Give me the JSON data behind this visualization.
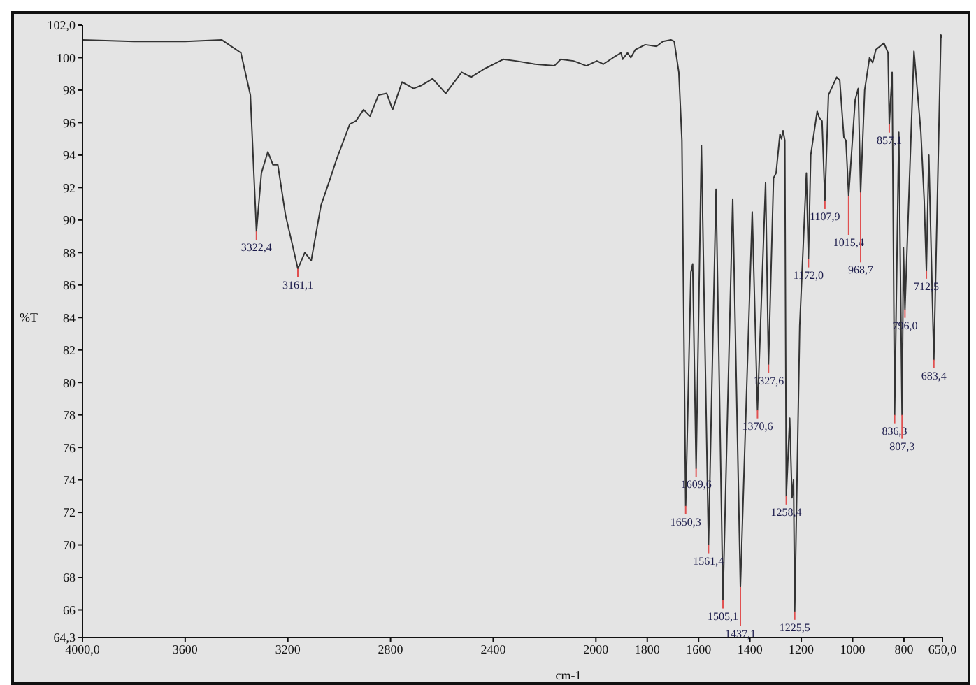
{
  "chart_data": {
    "type": "line",
    "xlabel": "cm-1",
    "ylabel": "%T",
    "x": [
      4000,
      3800,
      3600,
      3458,
      3383,
      3346,
      3322.4,
      3303,
      3278,
      3258,
      3239,
      3209,
      3184,
      3161.1,
      3134,
      3109,
      3071,
      3034,
      3009,
      2959,
      2935,
      2905,
      2880,
      2847,
      2815,
      2792,
      2755,
      2710,
      2678,
      2636,
      2585,
      2523,
      2486,
      2436,
      2361,
      2312,
      2237,
      2162,
      2137,
      2087,
      2037,
      1996,
      1971,
      1933,
      1902,
      1896,
      1877,
      1864,
      1846,
      1808,
      1764,
      1739,
      1708,
      1695,
      1677,
      1665,
      1650.3,
      1630,
      1623,
      1609.6,
      1589,
      1561.4,
      1532,
      1505.1,
      1467,
      1437.1,
      1391,
      1370.6,
      1339,
      1327.6,
      1308,
      1298,
      1283,
      1277,
      1271,
      1264,
      1258.4,
      1245,
      1236,
      1230,
      1225.5,
      1206,
      1180,
      1172.0,
      1163,
      1138,
      1130,
      1119,
      1107.9,
      1094,
      1062,
      1050,
      1034,
      1026,
      1015.4,
      990,
      978,
      968.7,
      953,
      934,
      922,
      909,
      878,
      862,
      857.1,
      846,
      836.3,
      820,
      807.3,
      802,
      796.0,
      761,
      734,
      721,
      712.5,
      703,
      683.4,
      656,
      650
    ],
    "series": [
      {
        "color": "#333333",
        "values": [
          101.1,
          101.0,
          101.0,
          101.1,
          100.3,
          97.7,
          89.3,
          92.9,
          94.2,
          93.4,
          93.4,
          90.3,
          88.6,
          87.0,
          88.0,
          87.5,
          90.9,
          92.6,
          93.8,
          95.9,
          96.1,
          96.8,
          96.4,
          97.7,
          97.8,
          96.8,
          98.5,
          98.1,
          98.3,
          98.7,
          97.8,
          99.1,
          98.8,
          99.3,
          99.9,
          99.8,
          99.6,
          99.5,
          99.9,
          99.8,
          99.5,
          99.8,
          99.6,
          100.0,
          100.3,
          99.9,
          100.3,
          100.0,
          100.5,
          100.8,
          100.7,
          101.0,
          101.1,
          101.0,
          99.1,
          94.9,
          72.4,
          86.8,
          87.3,
          74.7,
          94.6,
          70.0,
          91.9,
          66.6,
          91.3,
          67.4,
          90.5,
          78.3,
          92.3,
          81.1,
          92.6,
          92.9,
          95.3,
          95.0,
          95.5,
          94.9,
          73.0,
          77.8,
          72.9,
          74.0,
          65.9,
          83.5,
          92.9,
          87.6,
          94.0,
          96.7,
          96.3,
          96.1,
          91.2,
          97.7,
          98.8,
          98.6,
          95.1,
          94.9,
          91.5,
          97.4,
          98.1,
          91.7,
          98.0,
          100.0,
          99.7,
          100.5,
          100.9,
          100.3,
          95.9,
          99.1,
          78.0,
          95.4,
          78.0,
          88.3,
          84.5,
          100.4,
          95.4,
          91.2,
          86.9,
          94.0,
          81.4,
          101.4,
          101.2
        ]
      }
    ],
    "xlim": [
      4000,
      650
    ],
    "xticks": [
      {
        "value": 4000,
        "label": "4000,0"
      },
      3600,
      3200,
      2800,
      2400,
      2000,
      1800,
      1600,
      1400,
      1200,
      1000,
      800,
      {
        "value": 650,
        "label": "650,0"
      }
    ],
    "ylim": [
      64.3,
      102.0
    ],
    "yticks": [
      {
        "value": 64.3,
        "label": "64,3"
      },
      66,
      68,
      70,
      72,
      74,
      76,
      78,
      80,
      82,
      84,
      86,
      88,
      90,
      92,
      94,
      96,
      98,
      100,
      {
        "value": 102.0,
        "label": "102,0"
      }
    ],
    "marker": "none",
    "line_style": "solid",
    "annotations": [
      {
        "text": "3322,4",
        "x": 3322.4,
        "y": 89.3
      },
      {
        "text": "3161,1",
        "x": 3161.1,
        "y": 87.0
      },
      {
        "text": "1650,3",
        "x": 1650.3,
        "y": 72.4
      },
      {
        "text": "1609,6",
        "x": 1609.6,
        "y": 74.7
      },
      {
        "text": "1561,4",
        "x": 1561.4,
        "y": 70.0
      },
      {
        "text": "1505,1",
        "x": 1505.1,
        "y": 66.6
      },
      {
        "text": "1437,1",
        "x": 1437.1,
        "y": 67.4
      },
      {
        "text": "1370,6",
        "x": 1370.6,
        "y": 78.3
      },
      {
        "text": "1327,6",
        "x": 1327.6,
        "y": 81.1
      },
      {
        "text": "1258,4",
        "x": 1258.4,
        "y": 73.0
      },
      {
        "text": "1225,5",
        "x": 1225.5,
        "y": 65.9
      },
      {
        "text": "1172,0",
        "x": 1172.0,
        "y": 87.6
      },
      {
        "text": "1107,9",
        "x": 1107.9,
        "y": 91.2
      },
      {
        "text": "1015,4",
        "x": 1015.4,
        "y": 91.5
      },
      {
        "text": "968,7",
        "x": 968.7,
        "y": 91.7
      },
      {
        "text": "857,1",
        "x": 857.1,
        "y": 95.9
      },
      {
        "text": "836,3",
        "x": 836.3,
        "y": 78.0
      },
      {
        "text": "807,3",
        "x": 807.3,
        "y": 78.0
      },
      {
        "text": "796,0",
        "x": 796.0,
        "y": 84.5
      },
      {
        "text": "712,5",
        "x": 712.5,
        "y": 86.9
      },
      {
        "text": "683,4",
        "x": 683.4,
        "y": 81.4
      }
    ]
  }
}
